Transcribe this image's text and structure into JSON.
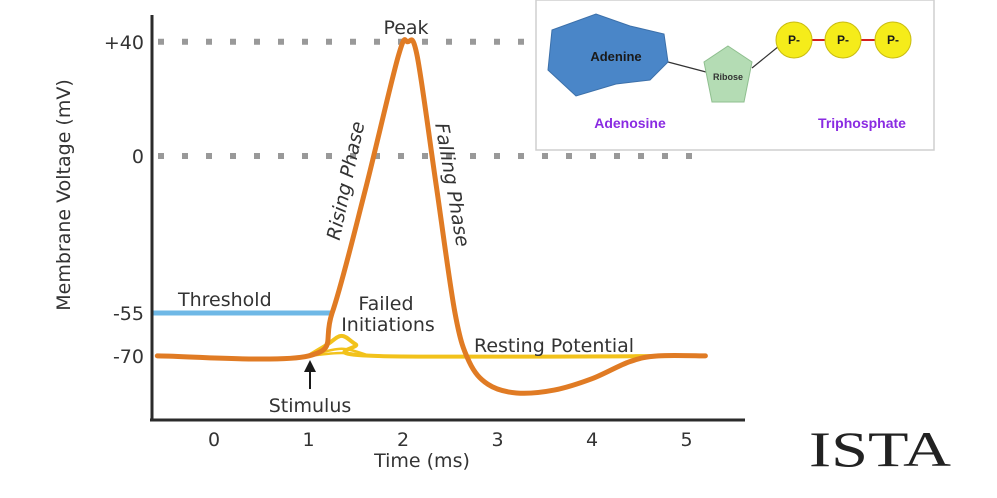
{
  "chart_data": {
    "type": "line",
    "xlabel": "Time (ms)",
    "ylabel": "Membrane Voltage (mV)",
    "x_ticks": [
      0,
      1,
      2,
      3,
      4,
      5
    ],
    "y_ticks": [
      {
        "value": 40,
        "label": "+40"
      },
      {
        "value": 0,
        "label": "0"
      },
      {
        "value": -55,
        "label": "-55"
      },
      {
        "value": -70,
        "label": "-70"
      }
    ],
    "xlim": [
      -0.6,
      5.5
    ],
    "ylim": [
      -90,
      48
    ],
    "series": [
      {
        "name": "Action potential",
        "color": "#e07b24",
        "x": [
          -0.6,
          1.0,
          1.25,
          1.6,
          1.95,
          2.05,
          2.15,
          2.35,
          2.55,
          2.7,
          2.9,
          3.2,
          3.6,
          4.0,
          4.4,
          4.7,
          5.2
        ],
        "y": [
          -70,
          -70,
          -55,
          -12,
          35,
          40,
          35,
          -10,
          -55,
          -72,
          -80,
          -83,
          -82,
          -78,
          -72,
          -70,
          -70
        ]
      },
      {
        "name": "Failed initiations",
        "color": "#f2c21b",
        "x": [
          1.0,
          1.2,
          1.35,
          1.5,
          1.7,
          5.2
        ],
        "y": [
          -70,
          -66,
          -63,
          -66,
          -70,
          -70
        ]
      }
    ],
    "reference_lines": [
      {
        "label": "+40",
        "value": 40,
        "style": "dotted",
        "color": "#999999"
      },
      {
        "label": "0",
        "value": 0,
        "style": "dotted",
        "color": "#999999"
      },
      {
        "label": "Threshold",
        "value": -55,
        "x_range": [
          -0.6,
          1.25
        ],
        "color": "#6fb8e6"
      }
    ],
    "annotations": {
      "peak": "Peak",
      "rising": "Rising Phase",
      "falling": "Falling Phase",
      "threshold": "Threshold",
      "failed_line1": "Failed",
      "failed_line2": "Initiations",
      "resting": "Resting Potential",
      "stimulus": "Stimulus"
    }
  },
  "inset": {
    "adenine": "Adenine",
    "ribose": "Ribose",
    "phosphates": [
      "P-",
      "P-",
      "P-"
    ],
    "adenosine": "Adenosine",
    "triphosphate": "Triphosphate",
    "colors": {
      "adenine": "#4a86c8",
      "ribose": "#b4dcb4",
      "phosphate": "#f5ec1a",
      "phosphate_link": "#d42020",
      "label": "#8a2be2"
    }
  },
  "logo": "ISTA"
}
